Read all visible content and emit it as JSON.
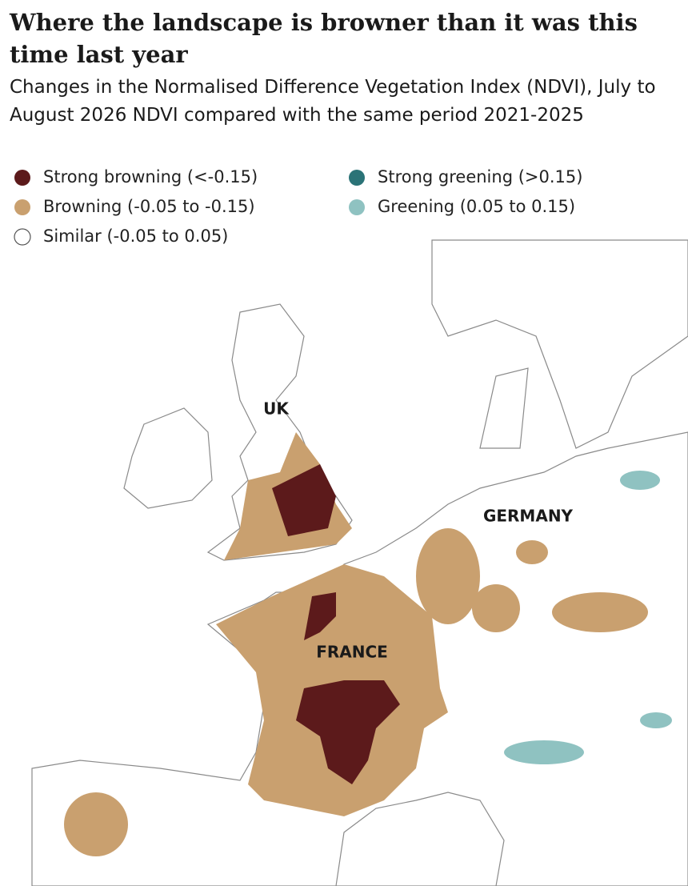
{
  "header": {
    "title": "Where the landscape is browner than it was this time last year",
    "subtitle": "Changes in the Normalised Difference Vegetation Index (NDVI), July to August 2026 NDVI compared with the same period 2021-2025"
  },
  "legend": [
    {
      "label": "Strong browning (<-0.15)",
      "color": "#5c1a1b"
    },
    {
      "label": "Browning (-0.05 to -0.15)",
      "color": "#c9a06f"
    },
    {
      "label": "Similar (-0.05 to 0.05)",
      "color": "#ffffff"
    },
    {
      "label": "Strong greening (>0.15)",
      "color": "#2b7377"
    },
    {
      "label": "Greening (0.05 to 0.15)",
      "color": "#8fc2c1"
    }
  ],
  "map": {
    "labels": [
      "UK",
      "GERMANY",
      "FRANCE"
    ]
  }
}
